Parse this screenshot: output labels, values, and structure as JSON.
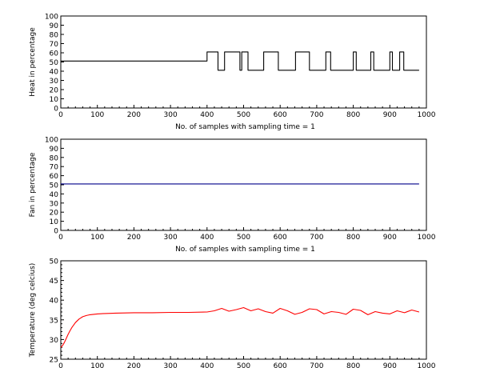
{
  "chart_data": [
    {
      "type": "line",
      "ylabel": "Heat in percentage",
      "xlabel": "No. of samples with sampling time = 1",
      "xlim": [
        0,
        1000
      ],
      "ylim": [
        0,
        100
      ],
      "xticks": [
        "0",
        "100",
        "200",
        "300",
        "400",
        "500",
        "600",
        "700",
        "800",
        "900",
        "1000"
      ],
      "yticks": [
        "0",
        "10",
        "20",
        "30",
        "40",
        "50",
        "60",
        "70",
        "80",
        "90",
        "100"
      ],
      "series": [
        {
          "color": "#000000",
          "x": [
            0,
            400,
            400,
            430,
            430,
            448,
            448,
            490,
            490,
            495,
            495,
            512,
            512,
            520,
            520,
            555,
            555,
            595,
            595,
            600,
            600,
            642,
            642,
            648,
            648,
            680,
            680,
            725,
            725,
            738,
            738,
            770,
            770,
            800,
            800,
            808,
            808,
            848,
            848,
            856,
            856,
            878,
            878,
            900,
            900,
            907,
            907,
            927,
            927,
            938,
            938,
            958,
            958,
            980
          ],
          "y": [
            51,
            51,
            61,
            61,
            41,
            41,
            61,
            61,
            41,
            41,
            61,
            61,
            41,
            41,
            41,
            41,
            61,
            61,
            41,
            41,
            41,
            41,
            61,
            61,
            61,
            61,
            41,
            41,
            61,
            61,
            41,
            41,
            41,
            41,
            61,
            61,
            41,
            41,
            61,
            61,
            41,
            41,
            41,
            41,
            61,
            61,
            41,
            41,
            61,
            61,
            41,
            41,
            41,
            41
          ]
        }
      ],
      "grid": false
    },
    {
      "type": "line",
      "ylabel": "Fan in percentage",
      "xlabel": "No. of samples with sampling time = 1",
      "xlim": [
        0,
        1000
      ],
      "ylim": [
        0,
        100
      ],
      "xticks": [
        "0",
        "100",
        "200",
        "300",
        "400",
        "500",
        "600",
        "700",
        "800",
        "900",
        "1000"
      ],
      "yticks": [
        "0",
        "10",
        "20",
        "30",
        "40",
        "50",
        "60",
        "70",
        "80",
        "90",
        "100"
      ],
      "series": [
        {
          "color": "#00008b",
          "x": [
            0,
            980
          ],
          "y": [
            51,
            51
          ]
        }
      ],
      "grid": false
    },
    {
      "type": "line",
      "ylabel": "Temperature (deg celcius)",
      "xlabel": "",
      "xlim": [
        0,
        1000
      ],
      "ylim": [
        25,
        50
      ],
      "xticks": [
        "0",
        "100",
        "200",
        "300",
        "400",
        "500",
        "600",
        "700",
        "800",
        "900",
        "1000"
      ],
      "yticks": [
        "25",
        "30",
        "35",
        "40",
        "45",
        "50"
      ],
      "series": [
        {
          "color": "#ff0000",
          "x": [
            0,
            5,
            10,
            15,
            20,
            25,
            30,
            40,
            50,
            60,
            70,
            80,
            90,
            100,
            120,
            150,
            200,
            250,
            300,
            350,
            400,
            420,
            440,
            460,
            480,
            500,
            520,
            540,
            560,
            580,
            600,
            620,
            640,
            660,
            680,
            700,
            720,
            740,
            760,
            780,
            800,
            820,
            840,
            860,
            880,
            900,
            920,
            940,
            960,
            980
          ],
          "y": [
            28,
            28.5,
            29.3,
            30.3,
            31.3,
            32.2,
            33.0,
            34.3,
            35.2,
            35.8,
            36.1,
            36.3,
            36.4,
            36.5,
            36.6,
            36.7,
            36.8,
            36.8,
            36.9,
            36.9,
            37.0,
            37.3,
            37.9,
            37.2,
            37.6,
            38.1,
            37.3,
            37.8,
            37.1,
            36.7,
            37.9,
            37.3,
            36.4,
            36.9,
            37.8,
            37.6,
            36.5,
            37.1,
            36.9,
            36.4,
            37.7,
            37.4,
            36.3,
            37.1,
            36.7,
            36.5,
            37.3,
            36.8,
            37.5,
            37.0
          ]
        }
      ],
      "grid": false
    }
  ]
}
